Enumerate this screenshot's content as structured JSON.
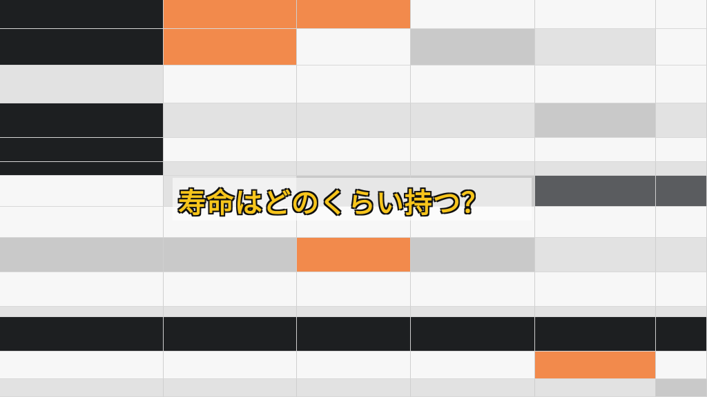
{
  "caption": {
    "text": "寿命はどのくらい持つ？",
    "color": "#f7c51c",
    "outline_color": "#111111"
  },
  "palette": {
    "dark": "#1d1f21",
    "accent": "#f28a4c",
    "grey": "#c9c9c9"
  }
}
